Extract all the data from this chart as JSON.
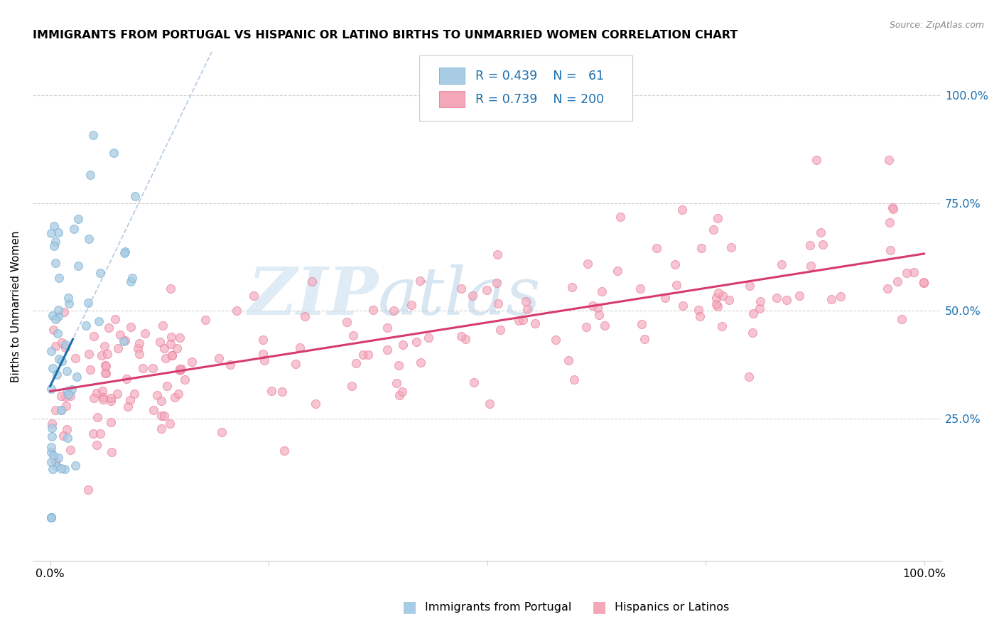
{
  "title": "IMMIGRANTS FROM PORTUGAL VS HISPANIC OR LATINO BIRTHS TO UNMARRIED WOMEN CORRELATION CHART",
  "source": "Source: ZipAtlas.com",
  "ylabel": "Births to Unmarried Women",
  "legend1_R": "0.439",
  "legend1_N": "61",
  "legend2_R": "0.739",
  "legend2_N": "200",
  "blue_color": "#a8cce4",
  "blue_color_edge": "#7ab0d4",
  "pink_color": "#f4a7b9",
  "pink_color_edge": "#e87a9a",
  "blue_line_color": "#1a6faf",
  "pink_line_color": "#d63a6e",
  "dash_color": "#b0c8e0",
  "legend_label_blue": "Immigrants from Portugal",
  "legend_label_pink": "Hispanics or Latinos",
  "watermark_zip": "ZIP",
  "watermark_atlas": "atlas",
  "ytick_pcts": [
    0.25,
    0.5,
    0.75,
    1.0
  ],
  "ytick_labels": [
    "25.0%",
    "50.0%",
    "75.0%",
    "100.0%"
  ],
  "xlim": [
    -0.02,
    1.02
  ],
  "ylim": [
    -0.08,
    1.1
  ]
}
